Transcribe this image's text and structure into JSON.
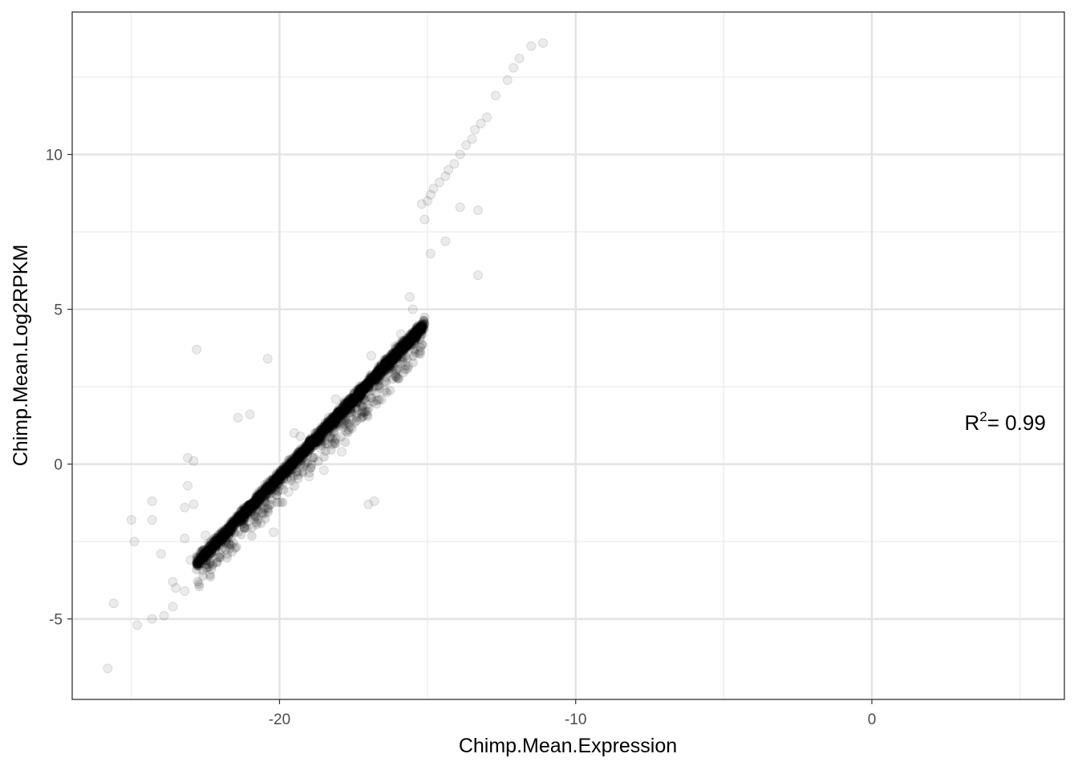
{
  "chart_data": {
    "type": "scatter",
    "title": "",
    "xlabel": "Chimp.Mean.Expression",
    "ylabel": "Chimp.Mean.Log2RPKM",
    "xlim": [
      -27.0,
      6.5
    ],
    "ylim": [
      -7.6,
      14.6
    ],
    "x_ticks": [
      -20,
      -10,
      0
    ],
    "x_tick_labels": [
      "-20",
      "-10",
      "0"
    ],
    "y_ticks": [
      -5,
      0,
      5,
      10
    ],
    "y_tick_labels": [
      "-5",
      "0",
      "5",
      "10"
    ],
    "x_minor_gridlines": [
      -25,
      -15,
      -5,
      5
    ],
    "y_minor_gridlines": [
      -2.5,
      2.5,
      7.5,
      12.5
    ],
    "grid": true,
    "theme": "bw",
    "point_color": "#000000",
    "point_alpha": 0.08,
    "trend": {
      "slope": 1.0,
      "intercept": 19.6,
      "x_range": [
        -22.8,
        -15.1
      ]
    },
    "points": [
      [
        -11.1,
        13.6
      ],
      [
        -11.5,
        13.5
      ],
      [
        -11.9,
        13.1
      ],
      [
        -12.1,
        12.8
      ],
      [
        -12.3,
        12.4
      ],
      [
        -12.7,
        11.9
      ],
      [
        -13.0,
        11.2
      ],
      [
        -13.2,
        11.0
      ],
      [
        -13.4,
        10.8
      ],
      [
        -13.5,
        10.5
      ],
      [
        -13.7,
        10.3
      ],
      [
        -13.9,
        10.0
      ],
      [
        -14.1,
        9.7
      ],
      [
        -14.3,
        9.5
      ],
      [
        -14.4,
        9.3
      ],
      [
        -14.6,
        9.1
      ],
      [
        -14.8,
        8.9
      ],
      [
        -14.9,
        8.7
      ],
      [
        -15.0,
        8.5
      ],
      [
        -15.2,
        8.4
      ],
      [
        -13.9,
        8.3
      ],
      [
        -13.3,
        8.2
      ],
      [
        -15.1,
        7.9
      ],
      [
        -14.4,
        7.2
      ],
      [
        -14.9,
        6.8
      ],
      [
        -13.3,
        6.1
      ],
      [
        -15.5,
        5.0
      ],
      [
        -16.1,
        3.8
      ],
      [
        -16.4,
        3.2
      ],
      [
        -17.6,
        1.8
      ],
      [
        -17.9,
        1.3
      ],
      [
        -18.3,
        0.9
      ],
      [
        -18.6,
        0.5
      ],
      [
        -18.9,
        0.2
      ],
      [
        -19.0,
        -0.4
      ],
      [
        -19.7,
        -0.9
      ],
      [
        -20.1,
        -1.0
      ],
      [
        -20.6,
        -1.3
      ],
      [
        -20.2,
        -2.2
      ],
      [
        -21.2,
        -2.0
      ],
      [
        -21.7,
        -2.6
      ],
      [
        -22.2,
        -2.8
      ],
      [
        -16.8,
        -1.2
      ],
      [
        -17.0,
        -1.3
      ],
      [
        -22.8,
        3.7
      ],
      [
        -20.4,
        3.4
      ],
      [
        -23.1,
        0.2
      ],
      [
        -22.9,
        0.1
      ],
      [
        -23.1,
        -0.7
      ],
      [
        -22.9,
        -1.3
      ],
      [
        -23.2,
        -1.4
      ],
      [
        -21.3,
        -1.5
      ],
      [
        -25.0,
        -1.8
      ],
      [
        -24.3,
        -1.8
      ],
      [
        -24.3,
        -1.2
      ],
      [
        -23.2,
        -2.4
      ],
      [
        -24.9,
        -2.5
      ],
      [
        -24.0,
        -2.9
      ],
      [
        -23.0,
        -3.1
      ],
      [
        -22.6,
        -3.2
      ],
      [
        -23.6,
        -3.8
      ],
      [
        -23.5,
        -4.0
      ],
      [
        -23.2,
        -4.1
      ],
      [
        -23.6,
        -4.6
      ],
      [
        -23.9,
        -4.9
      ],
      [
        -24.3,
        -5.0
      ],
      [
        -24.8,
        -5.2
      ],
      [
        -25.6,
        -4.5
      ],
      [
        -25.8,
        -6.6
      ],
      [
        -21.4,
        1.5
      ],
      [
        -21.0,
        1.6
      ],
      [
        -19.5,
        1.0
      ],
      [
        -19.3,
        0.9
      ],
      [
        -18.5,
        -0.2
      ],
      [
        -17.9,
        0.4
      ],
      [
        -18.1,
        2.1
      ],
      [
        -16.9,
        3.5
      ],
      [
        -15.6,
        5.4
      ],
      [
        -15.9,
        4.2
      ],
      [
        -16.7,
        2.8
      ],
      [
        -17.3,
        2.5
      ],
      [
        -19.0,
        0.6
      ],
      [
        -20.8,
        -1.7
      ],
      [
        -21.8,
        -2.1
      ],
      [
        -22.5,
        -2.3
      ],
      [
        -22.3,
        -3.4
      ],
      [
        -20.0,
        -0.7
      ],
      [
        -19.6,
        0.0
      ],
      [
        -18.8,
        1.0
      ],
      [
        -16.5,
        3.0
      ]
    ],
    "annotation": {
      "text": "R",
      "superscript": "2",
      "suffix": "=  0.99",
      "x": 4.5,
      "y": 1.1
    }
  }
}
